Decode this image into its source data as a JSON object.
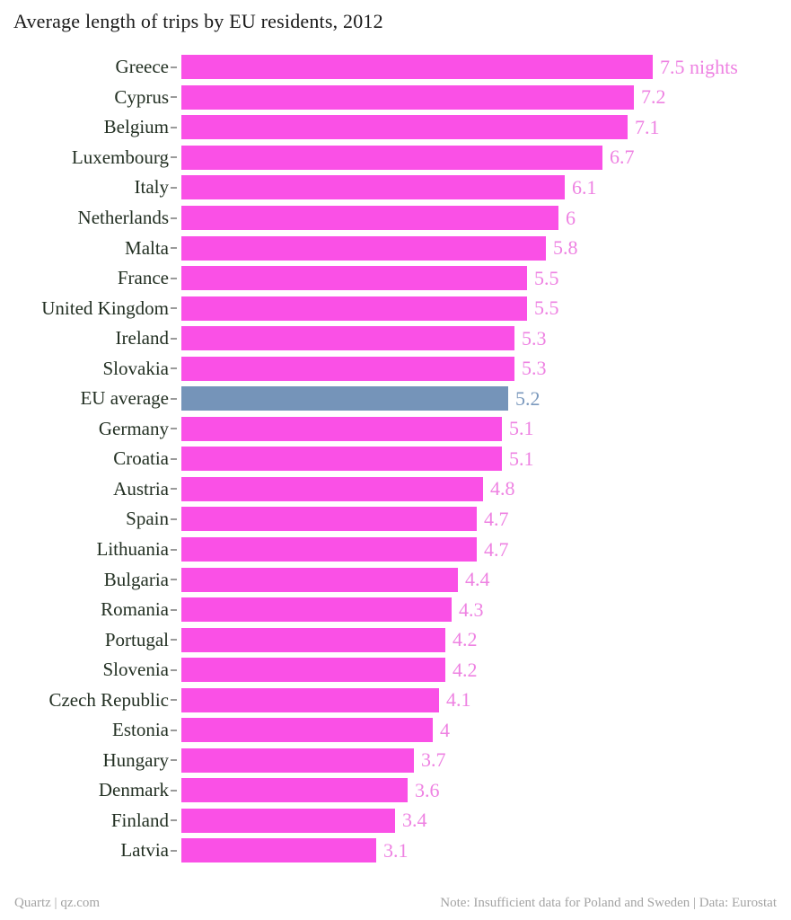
{
  "title": "Average length of trips by EU residents, 2012",
  "footer": {
    "left": "Quartz | qz.com",
    "right": "Note: Insufficient data for Poland and Sweden | Data: Eurostat"
  },
  "colors": {
    "bar_pink": "#fa50e6",
    "value_label_pink": "#ee82e2",
    "bar_highlight_blue": "#7594b9",
    "value_label_blue": "#7b99bd",
    "category_label_green": "#233023",
    "tick_gray": "#9a9a9a",
    "footer_gray": "#a3a3a3",
    "title_dark": "#1a1a1a"
  },
  "chart_data": {
    "type": "bar",
    "orientation": "horizontal",
    "title": "Average length of trips by EU residents, 2012",
    "unit": "nights",
    "xlim": [
      0,
      7.5
    ],
    "grid": false,
    "legend": false,
    "categories": [
      "Greece",
      "Cyprus",
      "Belgium",
      "Luxembourg",
      "Italy",
      "Netherlands",
      "Malta",
      "France",
      "United Kingdom",
      "Ireland",
      "Slovakia",
      "EU average",
      "Germany",
      "Croatia",
      "Austria",
      "Spain",
      "Lithuania",
      "Bulgaria",
      "Romania",
      "Portugal",
      "Slovenia",
      "Czech Republic",
      "Estonia",
      "Hungary",
      "Denmark",
      "Finland",
      "Latvia"
    ],
    "values": [
      7.5,
      7.2,
      7.1,
      6.7,
      6.1,
      6,
      5.8,
      5.5,
      5.5,
      5.3,
      5.3,
      5.2,
      5.1,
      5.1,
      4.8,
      4.7,
      4.7,
      4.4,
      4.3,
      4.2,
      4.2,
      4.1,
      4,
      3.7,
      3.6,
      3.4,
      3.1
    ],
    "value_labels": [
      "7.5 nights",
      "7.2",
      "7.1",
      "6.7",
      "6.1",
      "6",
      "5.8",
      "5.5",
      "5.5",
      "5.3",
      "5.3",
      "5.2",
      "5.1",
      "5.1",
      "4.8",
      "4.7",
      "4.7",
      "4.4",
      "4.3",
      "4.2",
      "4.2",
      "4.1",
      "4",
      "3.7",
      "3.6",
      "3.4",
      "3.1"
    ],
    "highlight_category": "EU average",
    "highlight_index": 11
  }
}
